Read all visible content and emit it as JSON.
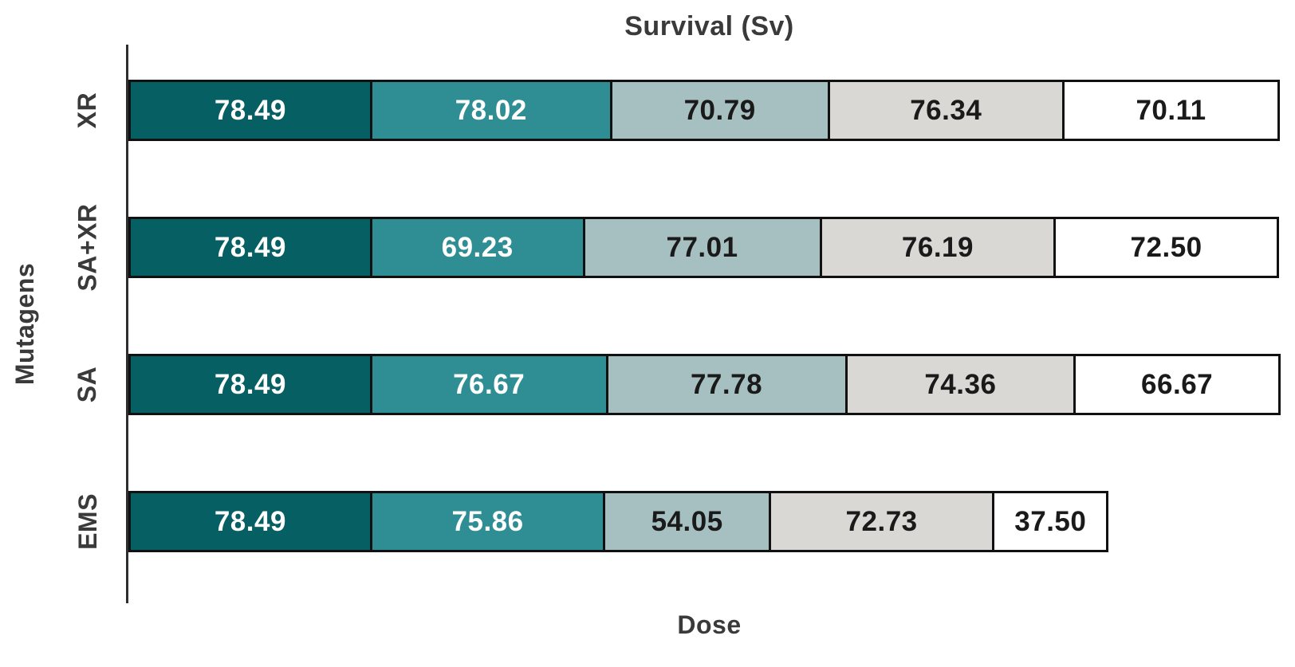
{
  "chart_data": {
    "type": "bar",
    "orientation": "horizontal",
    "stacked": true,
    "title": "Survival (Sv)",
    "xlabel": "Dose",
    "ylabel": "Mutagens",
    "categories": [
      "XR",
      "SA+XR",
      "SA",
      "EMS"
    ],
    "series": [
      {
        "name": "stack-segment-1",
        "color": "#065f63",
        "label_color": "#ffffff",
        "values": [
          78.49,
          78.49,
          78.49,
          78.49
        ]
      },
      {
        "name": "stack-segment-2",
        "color": "#2e8e94",
        "label_color": "#ffffff",
        "values": [
          78.02,
          69.23,
          76.67,
          75.86
        ]
      },
      {
        "name": "stack-segment-3",
        "color": "#a6bfc0",
        "label_color": "#1a1a1a",
        "values": [
          70.79,
          77.01,
          77.78,
          54.05
        ]
      },
      {
        "name": "stack-segment-4",
        "color": "#d9d8d5",
        "label_color": "#1a1a1a",
        "values": [
          76.34,
          76.19,
          74.36,
          72.73
        ]
      },
      {
        "name": "stack-segment-5",
        "color": "#ffffff",
        "label_color": "#1a1a1a",
        "values": [
          70.11,
          72.5,
          66.67,
          37.5
        ]
      }
    ],
    "value_format_decimals": 2,
    "axis_color": "#2e2e2e",
    "segment_border_color": "#111111",
    "text_color": "#3a3a3a",
    "background": "#ffffff",
    "legend": "none",
    "grid": "off"
  }
}
